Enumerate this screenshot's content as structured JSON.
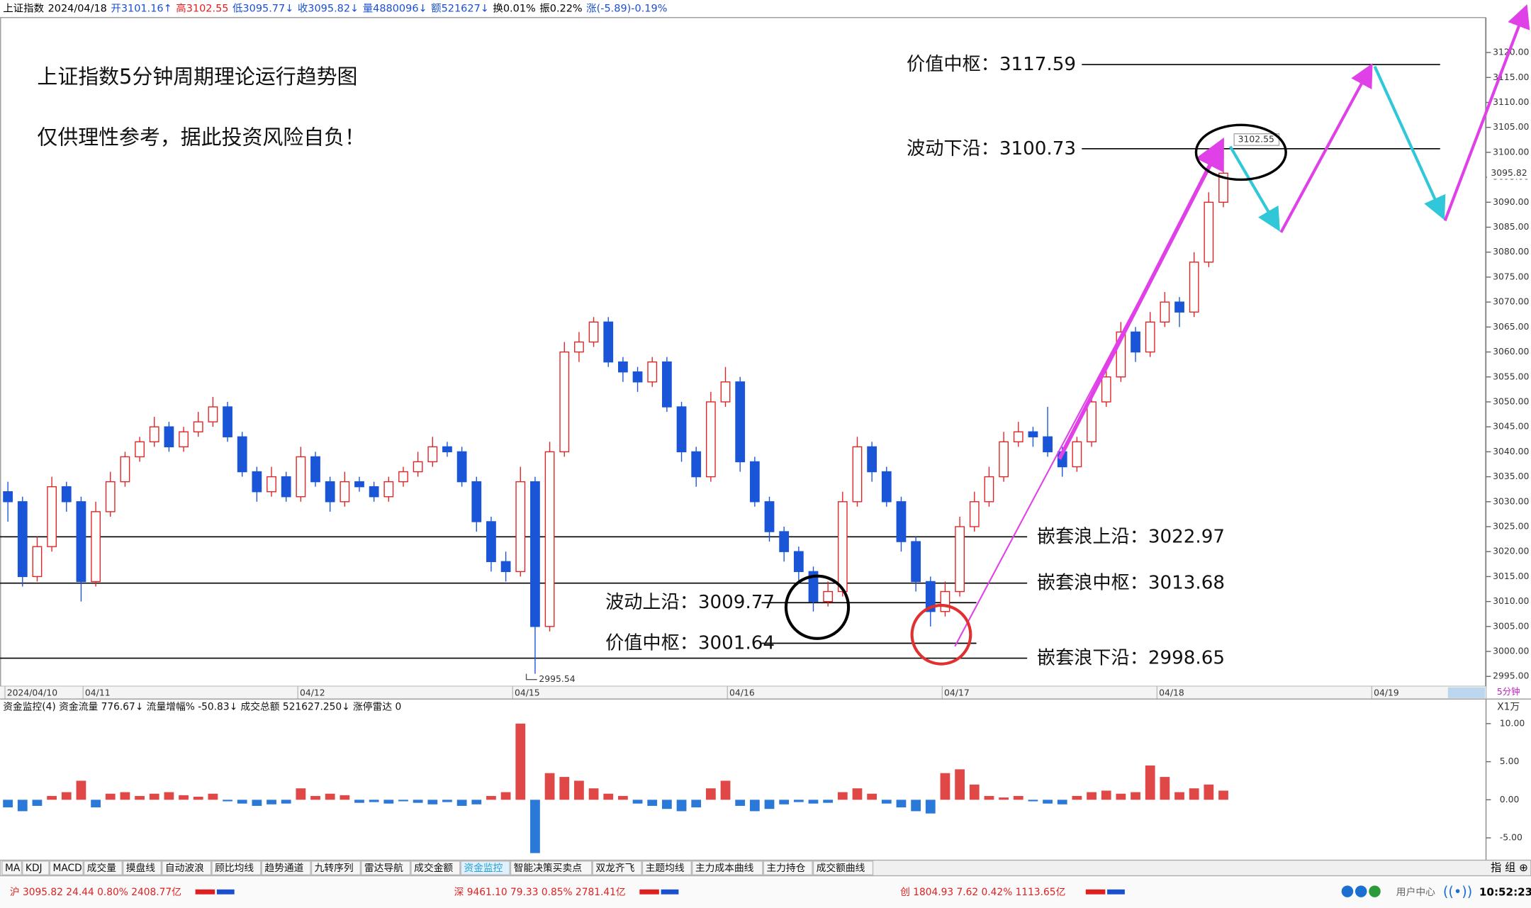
{
  "ui": {
    "header": [
      {
        "text": "上证指数",
        "color": "#000000"
      },
      {
        "text": "2024/04/18",
        "color": "#000000"
      },
      {
        "text": "开3101.16↑",
        "color": "#1a4fd0"
      },
      {
        "text": "高3102.55",
        "color": "#e02020"
      },
      {
        "text": "低3095.77↓",
        "color": "#1a4fd0"
      },
      {
        "text": "收3095.82↓",
        "color": "#1a4fd0"
      },
      {
        "text": "量4880096↓",
        "color": "#1a4fd0"
      },
      {
        "text": "额521627↓",
        "color": "#1a4fd0"
      },
      {
        "text": "换0.01%",
        "color": "#000000"
      },
      {
        "text": "振0.22%",
        "color": "#000000"
      },
      {
        "text": "涨(-5.89)-0.19%",
        "color": "#1a4fd0"
      }
    ],
    "title": "上证指数5分钟周期理论运行趋势图",
    "subtitle": "仅供理性参考，据此投资风险自负！",
    "period": "5分钟",
    "flow_header": "资金监控(4)  资金流量 776.67↓  流量增幅% -50.83↓  成交总额 521627.250↓  涨停雷达 0",
    "tabs": [
      "MA",
      "KDJ",
      "MACD",
      "成交量",
      "摸盘线",
      "自动波浪",
      "顾比均线",
      "趋势通道",
      "九转序列",
      "雷达导航",
      "成交金额",
      "资金监控",
      "智能决策买卖点",
      "双龙齐飞",
      "主题均线",
      "主力成本曲线",
      "主力持仓",
      "成交额曲线"
    ],
    "tab_right": "指 组 ⊕",
    "status": [
      "沪 3095.82  24.44  0.80%  2408.77亿",
      "深 9461.10  79.33  0.85%  2781.41亿",
      "创 1804.93  7.62  0.42%  1113.65亿"
    ],
    "user_center": "用户中心",
    "clock": "10:52:23"
  },
  "chart_data": [
    {
      "type": "candlestick",
      "up_color": "#e02424",
      "down_color": "#1a55d8",
      "x_labels": [
        "2024/04/10",
        "04/11",
        "04/12",
        "04/15",
        "04/16",
        "04/17",
        "04/18",
        "04/19"
      ],
      "ylim": [
        2993,
        3127
      ],
      "yticks": [
        {
          "value": 2995,
          "label": "2995.00"
        },
        {
          "value": 3000,
          "label": "3000.00"
        },
        {
          "value": 3005,
          "label": "3005.00"
        },
        {
          "value": 3010,
          "label": "3010.00"
        },
        {
          "value": 3015,
          "label": "3015.00"
        },
        {
          "value": 3020,
          "label": "3020.00"
        },
        {
          "value": 3025,
          "label": "3025.00"
        },
        {
          "value": 3030,
          "label": "3030.00"
        },
        {
          "value": 3035,
          "label": "3035.00"
        },
        {
          "value": 3040,
          "label": "3040.00"
        },
        {
          "value": 3045,
          "label": "3045.00"
        },
        {
          "value": 3050,
          "label": "3050.00"
        },
        {
          "value": 3055,
          "label": "3055.00"
        },
        {
          "value": 3060,
          "label": "3060.00"
        },
        {
          "value": 3065,
          "label": "3065.00"
        },
        {
          "value": 3070,
          "label": "3070.00"
        },
        {
          "value": 3075,
          "label": "3075.00"
        },
        {
          "value": 3080,
          "label": "3080.00"
        },
        {
          "value": 3085,
          "label": "3085.00"
        },
        {
          "value": 3090,
          "label": "3090.00"
        },
        {
          "value": 3095,
          "label": "3095.00"
        },
        {
          "value": 3100,
          "label": "3100.00"
        },
        {
          "value": 3105,
          "label": "3105.00"
        },
        {
          "value": 3110,
          "label": "3110.00"
        },
        {
          "value": 3115,
          "label": "3115.00"
        },
        {
          "value": 3120,
          "label": "3120.00"
        }
      ],
      "ohlc": [
        [
          3032,
          3034,
          3026,
          3030
        ],
        [
          3030,
          3031,
          3013,
          3015
        ],
        [
          3015,
          3023,
          3014,
          3021
        ],
        [
          3021,
          3035,
          3020,
          3033
        ],
        [
          3033,
          3034,
          3028,
          3030
        ],
        [
          3030,
          3031,
          3010,
          3014
        ],
        [
          3014,
          3030,
          3013,
          3028
        ],
        [
          3028,
          3036,
          3027,
          3034
        ],
        [
          3034,
          3040,
          3033,
          3039
        ],
        [
          3039,
          3043,
          3038,
          3042
        ],
        [
          3042,
          3047,
          3041,
          3045
        ],
        [
          3045,
          3046,
          3040,
          3041
        ],
        [
          3041,
          3045,
          3040,
          3044
        ],
        [
          3044,
          3048,
          3043,
          3046
        ],
        [
          3046,
          3051,
          3045,
          3049
        ],
        [
          3049,
          3050,
          3042,
          3043
        ],
        [
          3043,
          3044,
          3035,
          3036
        ],
        [
          3036,
          3037,
          3030,
          3032
        ],
        [
          3032,
          3037,
          3031,
          3035
        ],
        [
          3035,
          3036,
          3030,
          3031
        ],
        [
          3031,
          3041,
          3030,
          3039
        ],
        [
          3039,
          3040,
          3033,
          3034
        ],
        [
          3034,
          3035,
          3028,
          3030
        ],
        [
          3030,
          3036,
          3029,
          3034
        ],
        [
          3034,
          3035,
          3032,
          3033
        ],
        [
          3033,
          3034,
          3030,
          3031
        ],
        [
          3031,
          3035,
          3030,
          3034
        ],
        [
          3034,
          3037,
          3033,
          3036
        ],
        [
          3036,
          3040,
          3035,
          3038
        ],
        [
          3038,
          3043,
          3037,
          3041
        ],
        [
          3041,
          3042,
          3039,
          3040
        ],
        [
          3040,
          3041,
          3033,
          3034
        ],
        [
          3034,
          3035,
          3024,
          3026
        ],
        [
          3026,
          3027,
          3016,
          3018
        ],
        [
          3018,
          3020,
          3014,
          3016
        ],
        [
          3016,
          3037,
          3015,
          3034
        ],
        [
          3034,
          3035,
          2995.54,
          3005
        ],
        [
          3005,
          3042,
          3004,
          3040
        ],
        [
          3040,
          3062,
          3039,
          3060
        ],
        [
          3060,
          3064,
          3058,
          3062
        ],
        [
          3062,
          3067,
          3061,
          3066
        ],
        [
          3066,
          3067,
          3057,
          3058
        ],
        [
          3058,
          3059,
          3054,
          3056
        ],
        [
          3056,
          3057,
          3052,
          3054
        ],
        [
          3054,
          3059,
          3053,
          3058
        ],
        [
          3058,
          3059,
          3048,
          3049
        ],
        [
          3049,
          3050,
          3038,
          3040
        ],
        [
          3040,
          3041,
          3033,
          3035
        ],
        [
          3035,
          3052,
          3034,
          3050
        ],
        [
          3050,
          3057,
          3049,
          3054
        ],
        [
          3054,
          3055,
          3036,
          3038
        ],
        [
          3038,
          3039,
          3029,
          3030
        ],
        [
          3030,
          3031,
          3022,
          3024
        ],
        [
          3024,
          3025,
          3018,
          3020
        ],
        [
          3020,
          3021,
          3014,
          3016
        ],
        [
          3016,
          3017,
          3008,
          3010
        ],
        [
          3010,
          3014,
          3009,
          3012
        ],
        [
          3012,
          3032,
          3011,
          3030
        ],
        [
          3030,
          3043,
          3029,
          3041
        ],
        [
          3041,
          3042,
          3034,
          3036
        ],
        [
          3036,
          3037,
          3029,
          3030
        ],
        [
          3030,
          3031,
          3020,
          3022
        ],
        [
          3022,
          3023,
          3012,
          3014
        ],
        [
          3014,
          3015,
          3005,
          3008
        ],
        [
          3008,
          3014,
          3007,
          3012
        ],
        [
          3012,
          3027,
          3011,
          3025
        ],
        [
          3025,
          3032,
          3024,
          3030
        ],
        [
          3030,
          3037,
          3029,
          3035
        ],
        [
          3035,
          3044,
          3034,
          3042
        ],
        [
          3042,
          3046,
          3041,
          3044
        ],
        [
          3044,
          3045,
          3041,
          3043
        ],
        [
          3043,
          3049,
          3039,
          3040
        ],
        [
          3040,
          3041,
          3035,
          3037
        ],
        [
          3037,
          3043,
          3036,
          3042
        ],
        [
          3042,
          3052,
          3041,
          3050
        ],
        [
          3050,
          3057,
          3049,
          3055
        ],
        [
          3055,
          3066,
          3054,
          3064
        ],
        [
          3064,
          3065,
          3058,
          3060
        ],
        [
          3060,
          3068,
          3059,
          3066
        ],
        [
          3066,
          3072,
          3065,
          3070
        ],
        [
          3070,
          3071,
          3065,
          3068
        ],
        [
          3068,
          3080,
          3067,
          3078
        ],
        [
          3078,
          3092,
          3077,
          3090
        ],
        [
          3090,
          3102.55,
          3089,
          3095.82
        ]
      ],
      "high_label": 3102.55,
      "low_label": 2995.54,
      "last_price": 3095.82,
      "levels": [
        {
          "label": "价值中枢：",
          "value": 3117.59
        },
        {
          "label": "波动下沿：",
          "value": 3100.73
        },
        {
          "label": "嵌套浪上沿：",
          "value": 3022.97
        },
        {
          "label": "嵌套浪中枢：",
          "value": 3013.68
        },
        {
          "label": "波动上沿：",
          "value": 3009.77
        },
        {
          "label": "价值中枢：",
          "value": 3001.64
        },
        {
          "label": "嵌套浪下沿：",
          "value": 2998.65
        }
      ]
    },
    {
      "type": "bar",
      "title": "资金监控(4)",
      "unit": "X1万",
      "up_color": "#e04848",
      "down_color": "#2a78d8",
      "ylim": [
        -7.8,
        11.3
      ],
      "yticks": [
        {
          "value": 10,
          "label": "10.00"
        },
        {
          "value": 5,
          "label": "5.00"
        },
        {
          "value": 0,
          "label": "0.00"
        },
        {
          "value": -5,
          "label": "-5.00"
        }
      ],
      "values": [
        -1,
        -1.5,
        -0.8,
        0.5,
        1,
        2.5,
        -1,
        0.8,
        1,
        0.5,
        0.8,
        1,
        0.6,
        0.4,
        0.8,
        -0.2,
        -0.5,
        -0.8,
        -0.6,
        -0.5,
        1.5,
        0.5,
        0.8,
        0.6,
        -0.4,
        -0.3,
        -0.5,
        -0.2,
        -0.4,
        -0.6,
        -0.3,
        -0.8,
        -0.6,
        0.5,
        1,
        10,
        -7,
        3.5,
        3,
        2.5,
        1.5,
        0.8,
        0.5,
        -0.5,
        -0.8,
        -1.2,
        -1.5,
        -1,
        1.5,
        2.5,
        -0.8,
        -1.5,
        -1.2,
        -0.6,
        -0.3,
        -0.5,
        -0.4,
        1,
        1.5,
        0.8,
        -0.5,
        -1,
        -1.5,
        -1.8,
        3.5,
        4,
        2,
        0.5,
        0.3,
        0.5,
        -0.2,
        -0.5,
        -0.6,
        0.5,
        1,
        1.2,
        0.8,
        1,
        4.5,
        3,
        1,
        1.5,
        2,
        1.2
      ]
    }
  ]
}
